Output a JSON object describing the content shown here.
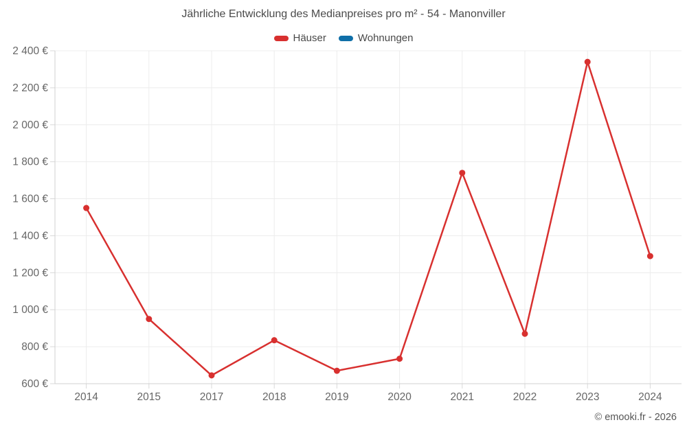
{
  "title": "Jährliche Entwicklung des Medianpreises pro m² - 54 - Manonviller",
  "footer": "© emooki.fr - 2026",
  "legend": [
    {
      "label": "Häuser",
      "color": "#d8302f"
    },
    {
      "label": "Wohnungen",
      "color": "#0f6fa8"
    }
  ],
  "colors": {
    "houses_red": "#d8302f",
    "apartments_blue": "#0f6fa8",
    "grid_line": "#ececec",
    "axis_line": "#d0d0d0",
    "tick_mark": "#d8d8d8",
    "axis_label": "#666666",
    "title_text": "#4a4a4a",
    "footer_text": "#555555"
  },
  "chart_data": {
    "type": "line",
    "title": "Jährliche Entwicklung des Medianpreises pro m² - 54 - Manonviller",
    "categories": [
      "2014",
      "2015",
      "2017",
      "2018",
      "2019",
      "2020",
      "2021",
      "2022",
      "2023",
      "2024"
    ],
    "series": [
      {
        "name": "Häuser",
        "color": "#d8302f",
        "values": [
          1550,
          950,
          645,
          835,
          670,
          735,
          1740,
          870,
          2340,
          1290
        ]
      },
      {
        "name": "Wohnungen",
        "color": "#0f6fa8",
        "values": []
      }
    ],
    "xlabel": "",
    "ylabel": "",
    "ytick_format": "{value} €",
    "yticks": [
      600,
      800,
      1000,
      1200,
      1400,
      1600,
      1800,
      2000,
      2200,
      2400
    ],
    "ylim": [
      600,
      2400
    ],
    "grid": true,
    "legend_position": "top"
  }
}
